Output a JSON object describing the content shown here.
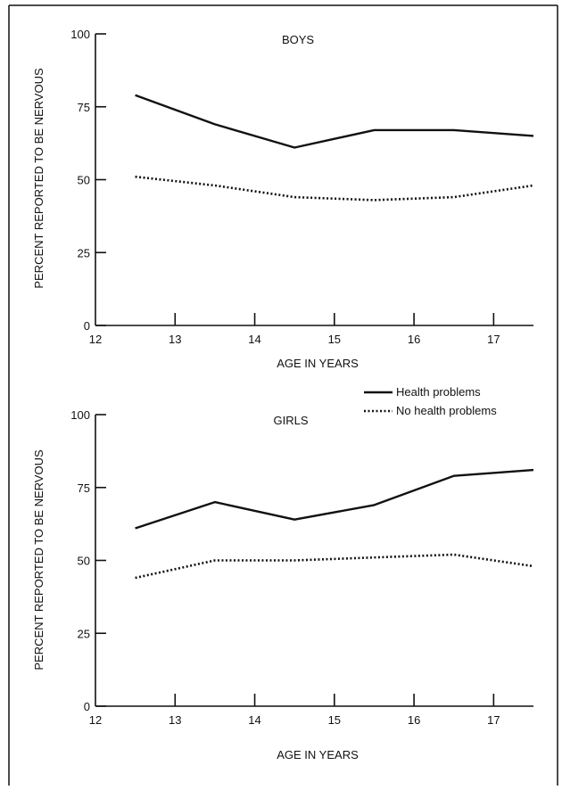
{
  "chart_data": [
    {
      "type": "line",
      "title": "BOYS",
      "xlabel": "AGE IN YEARS",
      "ylabel": "PERCENT REPORTED TO BE NERVOUS",
      "xlim": [
        12,
        17.5
      ],
      "ylim": [
        0,
        100
      ],
      "xticks": [
        12,
        13,
        14,
        15,
        16,
        17
      ],
      "yticks": [
        0,
        25,
        50,
        75,
        100
      ],
      "grid": false,
      "series": [
        {
          "name": "Health problems",
          "style": "solid",
          "x": [
            12.5,
            13.5,
            14.5,
            15.5,
            16.5,
            17.5
          ],
          "values": [
            79,
            69,
            61,
            67,
            67,
            65
          ]
        },
        {
          "name": "No health problems",
          "style": "dotted",
          "x": [
            12.5,
            13.5,
            14.5,
            15.5,
            16.5,
            17.5
          ],
          "values": [
            51,
            48,
            44,
            43,
            44,
            48
          ]
        }
      ]
    },
    {
      "type": "line",
      "title": "GIRLS",
      "xlabel": "AGE IN YEARS",
      "ylabel": "PERCENT REPORTED TO BE NERVOUS",
      "xlim": [
        12,
        17.5
      ],
      "ylim": [
        0,
        100
      ],
      "xticks": [
        12,
        13,
        14,
        15,
        16,
        17
      ],
      "yticks": [
        0,
        25,
        50,
        75,
        100
      ],
      "grid": false,
      "legend": "top-right",
      "series": [
        {
          "name": "Health problems",
          "style": "solid",
          "x": [
            12.5,
            13.5,
            14.5,
            15.5,
            16.5,
            17.5
          ],
          "values": [
            61,
            70,
            64,
            69,
            79,
            81
          ]
        },
        {
          "name": "No health problems",
          "style": "dotted",
          "x": [
            12.5,
            13.5,
            14.5,
            15.5,
            16.5,
            17.5
          ],
          "values": [
            44,
            50,
            50,
            51,
            52,
            48
          ]
        }
      ]
    }
  ]
}
